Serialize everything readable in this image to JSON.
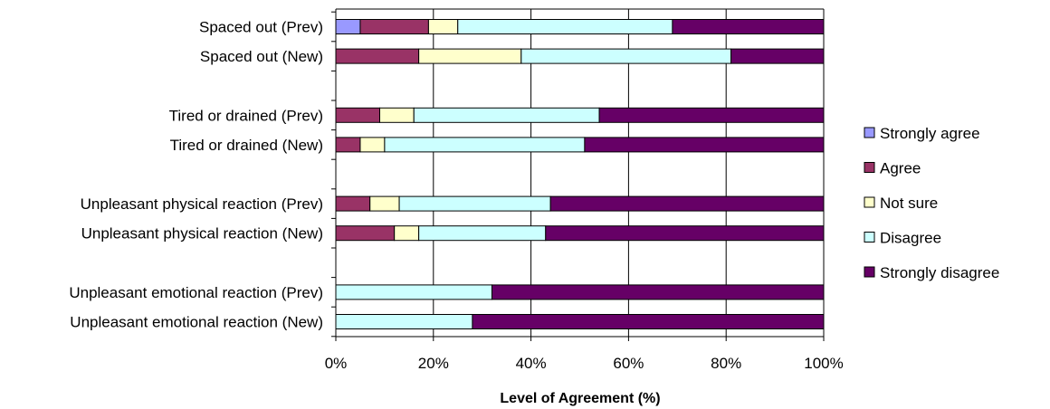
{
  "chart_data": {
    "type": "bar",
    "orientation": "horizontal",
    "stacking": "percent",
    "xlabel": "Level of Agreement (%)",
    "xlim": [
      0,
      100
    ],
    "x_ticks": [
      "0%",
      "20%",
      "40%",
      "60%",
      "80%",
      "100%"
    ],
    "grid": "vertical",
    "legend_position": "right",
    "rows": [
      {
        "label": "Spaced out (Prev)",
        "values": [
          5,
          14,
          6,
          44,
          31
        ]
      },
      {
        "label": "Spaced out (New)",
        "values": [
          0,
          17,
          21,
          43,
          19
        ]
      },
      {
        "label": "",
        "values": [
          0,
          0,
          0,
          0,
          0
        ]
      },
      {
        "label": "Tired or drained (Prev)",
        "values": [
          0,
          9,
          7,
          38,
          46
        ]
      },
      {
        "label": "Tired or drained (New)",
        "values": [
          0,
          5,
          5,
          41,
          49
        ]
      },
      {
        "label": "",
        "values": [
          0,
          0,
          0,
          0,
          0
        ]
      },
      {
        "label": "Unpleasant physical reaction (Prev)",
        "values": [
          0,
          7,
          6,
          31,
          56
        ]
      },
      {
        "label": "Unpleasant physical reaction (New)",
        "values": [
          0,
          12,
          5,
          26,
          57
        ]
      },
      {
        "label": "",
        "values": [
          0,
          0,
          0,
          0,
          0
        ]
      },
      {
        "label": "Unpleasant emotional reaction (Prev)",
        "values": [
          0,
          0,
          0,
          32,
          68
        ]
      },
      {
        "label": "Unpleasant emotional reaction (New)",
        "values": [
          0,
          0,
          0,
          28,
          72
        ]
      }
    ],
    "series": [
      {
        "name": "Strongly agree",
        "color": "#9999ff"
      },
      {
        "name": "Agree",
        "color": "#993366"
      },
      {
        "name": "Not sure",
        "color": "#ffffcc"
      },
      {
        "name": "Disagree",
        "color": "#ccffff"
      },
      {
        "name": "Strongly disagree",
        "color": "#660066"
      }
    ]
  }
}
